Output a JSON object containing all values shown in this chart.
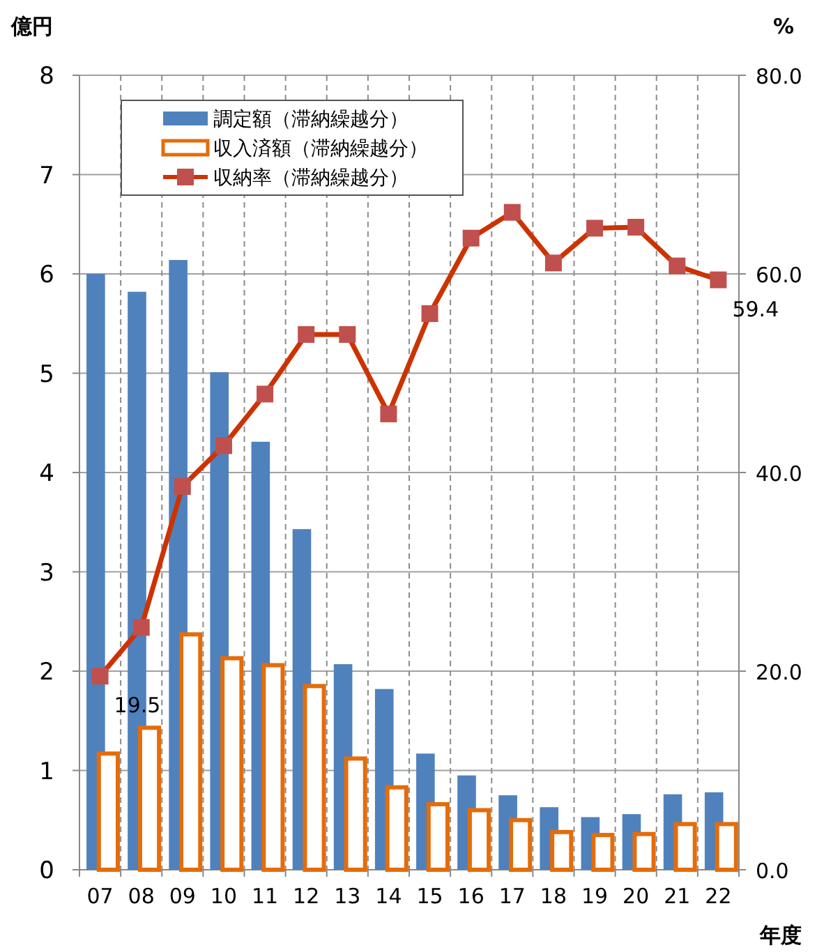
{
  "chart_data": {
    "type": "bar",
    "xlabel": "年度",
    "ylabel": "億円",
    "y2label": "%",
    "categories": [
      "07",
      "08",
      "09",
      "10",
      "11",
      "12",
      "13",
      "14",
      "15",
      "16",
      "17",
      "18",
      "19",
      "20",
      "21",
      "22"
    ],
    "series": [
      {
        "name": "調定額（滞納繰越分）",
        "color": "#4f81bd",
        "values": [
          6.0,
          5.82,
          6.14,
          5.01,
          4.31,
          3.43,
          2.07,
          1.82,
          1.17,
          0.95,
          0.75,
          0.63,
          0.53,
          0.56,
          0.76,
          0.78
        ]
      },
      {
        "name": "収入済額（滞納繰越分）",
        "color": "#e46c0a",
        "values": [
          1.17,
          1.43,
          2.37,
          2.13,
          2.06,
          1.85,
          1.12,
          0.83,
          0.66,
          0.6,
          0.5,
          0.38,
          0.35,
          0.36,
          0.46,
          0.46
        ]
      },
      {
        "name": "収納率（滞納繰越分）",
        "type": "line",
        "axis": "y2",
        "color": "#cc3300",
        "values": [
          19.5,
          24.4,
          38.6,
          42.7,
          47.9,
          53.9,
          53.9,
          45.9,
          56.0,
          63.6,
          66.2,
          61.1,
          64.6,
          64.7,
          60.8,
          59.4
        ],
        "value_labels": [
          "19.5",
          null,
          null,
          null,
          null,
          null,
          null,
          null,
          null,
          null,
          null,
          null,
          null,
          null,
          null,
          "59.4"
        ]
      }
    ],
    "ylim": [
      0,
      8
    ],
    "yticks": [
      0,
      1,
      2,
      3,
      4,
      5,
      6,
      7,
      8
    ],
    "y2lim": [
      0,
      80
    ],
    "y2ticks": [
      {
        "value": 0,
        "label": "0.0"
      },
      {
        "value": 20,
        "label": "20.0"
      },
      {
        "value": 40,
        "label": "40.0"
      },
      {
        "value": 60,
        "label": "60.0"
      },
      {
        "value": 80,
        "label": "80.0"
      }
    ],
    "grid": true,
    "legend": "top left",
    "marker": "square",
    "line_style": "solid"
  }
}
